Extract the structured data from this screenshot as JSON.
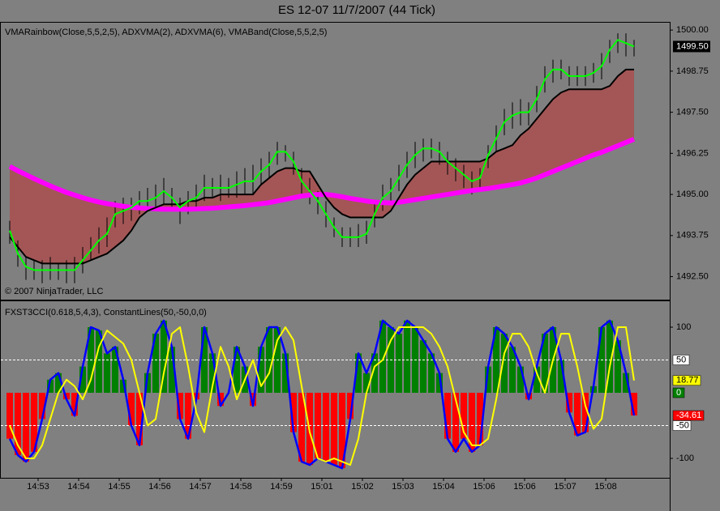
{
  "title": "ES 12-07  11/7/2007  (44 Tick)",
  "x_axis": {
    "ticks": [
      {
        "value": 3.5,
        "label": "14:53"
      },
      {
        "value": 8.5,
        "label": "14:54"
      },
      {
        "value": 13.5,
        "label": "14:55"
      },
      {
        "value": 18.5,
        "label": "14:56"
      },
      {
        "value": 23.5,
        "label": "14:57"
      },
      {
        "value": 28.5,
        "label": "14:58"
      },
      {
        "value": 33.5,
        "label": "14:59"
      },
      {
        "value": 38.5,
        "label": "15:01"
      },
      {
        "value": 43.5,
        "label": "15:02"
      },
      {
        "value": 48.5,
        "label": "15:03"
      },
      {
        "value": 53.5,
        "label": "15:04"
      },
      {
        "value": 58.5,
        "label": "15:06"
      },
      {
        "value": 63.5,
        "label": "15:06"
      },
      {
        "value": 68.5,
        "label": "15:07"
      },
      {
        "value": 73.5,
        "label": "15:08"
      }
    ]
  },
  "chart_data": [
    {
      "type": "price",
      "label": "VMARainbow(Close,5,5,2,5), ADXVMA(2), ADXVMA(6), VMABand(Close,5,5,2,5)",
      "copyright": "© 2007 NinjaTrader, LLC",
      "ylim": [
        1491.8,
        1500.2
      ],
      "yticks": [
        {
          "value": 1492.5,
          "label": "1492.50"
        },
        {
          "value": 1493.75,
          "label": "1493.75"
        },
        {
          "value": 1495,
          "label": "1495.00"
        },
        {
          "value": 1496.25,
          "label": "1496.25"
        },
        {
          "value": 1497.5,
          "label": "1497.50"
        },
        {
          "value": 1498.75,
          "label": "1498.75"
        },
        {
          "value": 1500,
          "label": "1500.00"
        }
      ],
      "last_price": {
        "value": 1499.5,
        "label": "1499.50"
      },
      "bar_color": "#000000",
      "band_color": "#b04848",
      "high": [
        1494.2,
        1493.6,
        1493.1,
        1493.0,
        1493.0,
        1493.1,
        1492.9,
        1493.0,
        1493.1,
        1493.4,
        1493.7,
        1494.0,
        1494.3,
        1494.8,
        1494.9,
        1494.9,
        1495.1,
        1495.2,
        1495.3,
        1495.5,
        1495.2,
        1494.9,
        1495.1,
        1495.3,
        1495.6,
        1495.5,
        1495.6,
        1495.5,
        1495.7,
        1495.8,
        1495.9,
        1496.1,
        1496.3,
        1496.6,
        1496.5,
        1496.3,
        1495.8,
        1495.5,
        1495.1,
        1494.8,
        1494.3,
        1494.0,
        1494.0,
        1494.1,
        1494.2,
        1494.8,
        1495.3,
        1495.5,
        1495.9,
        1496.3,
        1496.6,
        1496.7,
        1496.7,
        1496.6,
        1496.3,
        1496.1,
        1495.9,
        1495.7,
        1495.8,
        1496.5,
        1497.1,
        1497.6,
        1497.8,
        1497.9,
        1497.8,
        1498.3,
        1498.9,
        1499.1,
        1499.1,
        1498.9,
        1498.9,
        1498.9,
        1499.0,
        1499.3,
        1499.7,
        1499.9,
        1499.9,
        1499.7
      ],
      "low": [
        1493.5,
        1492.8,
        1492.4,
        1492.4,
        1492.3,
        1492.4,
        1492.4,
        1492.3,
        1492.3,
        1492.6,
        1493.0,
        1493.2,
        1493.4,
        1494.0,
        1494.1,
        1494.2,
        1494.4,
        1494.5,
        1494.5,
        1494.7,
        1494.5,
        1494.1,
        1494.4,
        1494.5,
        1494.8,
        1494.9,
        1494.8,
        1494.9,
        1494.9,
        1495.0,
        1495.0,
        1495.3,
        1495.5,
        1495.9,
        1496.0,
        1495.6,
        1495.0,
        1494.7,
        1494.4,
        1494.0,
        1493.7,
        1493.4,
        1493.4,
        1493.4,
        1493.5,
        1494.0,
        1494.5,
        1494.7,
        1495.1,
        1495.5,
        1495.8,
        1496.0,
        1496.1,
        1495.9,
        1495.6,
        1495.4,
        1495.2,
        1495.0,
        1495.1,
        1495.8,
        1496.3,
        1496.8,
        1497.0,
        1497.1,
        1497.1,
        1497.5,
        1498.1,
        1498.4,
        1498.5,
        1498.3,
        1498.3,
        1498.3,
        1498.4,
        1498.5,
        1499.0,
        1499.3,
        1499.2,
        1499.2
      ],
      "series": [
        {
          "color": "#00ff00",
          "width": 2,
          "values": [
            1493.9,
            1493.2,
            1492.8,
            1492.7,
            1492.7,
            1492.7,
            1492.7,
            1492.7,
            1492.7,
            1493.0,
            1493.3,
            1493.6,
            1493.8,
            1494.4,
            1494.5,
            1494.6,
            1494.8,
            1494.8,
            1494.9,
            1495.1,
            1494.9,
            1494.6,
            1494.8,
            1494.9,
            1495.2,
            1495.2,
            1495.2,
            1495.2,
            1495.3,
            1495.4,
            1495.4,
            1495.7,
            1495.9,
            1496.3,
            1496.3,
            1496.0,
            1495.4,
            1495.1,
            1494.8,
            1494.4,
            1494.0,
            1493.7,
            1493.7,
            1493.7,
            1493.8,
            1494.4,
            1494.9,
            1495.1,
            1495.5,
            1495.9,
            1496.2,
            1496.4,
            1496.4,
            1496.3,
            1496.0,
            1495.8,
            1495.6,
            1495.4,
            1495.5,
            1496.2,
            1496.7,
            1497.2,
            1497.4,
            1497.5,
            1497.5,
            1497.9,
            1498.5,
            1498.8,
            1498.8,
            1498.6,
            1498.6,
            1498.6,
            1498.7,
            1498.9,
            1499.4,
            1499.7,
            1499.6,
            1499.5
          ]
        },
        {
          "color": "#000000",
          "width": 2,
          "values": [
            1493.7,
            1493.4,
            1493.1,
            1493.0,
            1492.9,
            1492.9,
            1492.9,
            1492.9,
            1492.9,
            1492.9,
            1493.0,
            1493.1,
            1493.2,
            1493.4,
            1493.6,
            1493.9,
            1494.3,
            1494.5,
            1494.6,
            1494.7,
            1494.7,
            1494.7,
            1494.8,
            1494.8,
            1494.9,
            1494.9,
            1495.0,
            1495.0,
            1495.0,
            1495.0,
            1495.0,
            1495.3,
            1495.5,
            1495.7,
            1495.8,
            1495.8,
            1495.7,
            1495.7,
            1495.3,
            1494.9,
            1494.6,
            1494.4,
            1494.3,
            1494.3,
            1494.3,
            1494.3,
            1494.3,
            1494.5,
            1494.9,
            1495.3,
            1495.6,
            1495.8,
            1496.0,
            1496.0,
            1496.0,
            1496.0,
            1496.0,
            1496.0,
            1496.0,
            1496.1,
            1496.3,
            1496.4,
            1496.5,
            1496.8,
            1497.0,
            1497.3,
            1497.6,
            1497.9,
            1498.1,
            1498.2,
            1498.2,
            1498.2,
            1498.2,
            1498.2,
            1498.3,
            1498.6,
            1498.8,
            1498.8
          ]
        },
        {
          "color": "#ff00ff",
          "width": 6,
          "values": [
            1495.85,
            1495.72,
            1495.6,
            1495.48,
            1495.37,
            1495.26,
            1495.16,
            1495.06,
            1494.98,
            1494.9,
            1494.83,
            1494.77,
            1494.72,
            1494.68,
            1494.64,
            1494.61,
            1494.59,
            1494.57,
            1494.56,
            1494.55,
            1494.55,
            1494.55,
            1494.55,
            1494.56,
            1494.57,
            1494.58,
            1494.6,
            1494.62,
            1494.64,
            1494.66,
            1494.69,
            1494.72,
            1494.75,
            1494.8,
            1494.85,
            1494.9,
            1494.95,
            1494.98,
            1495.0,
            1495.0,
            1494.97,
            1494.93,
            1494.88,
            1494.84,
            1494.8,
            1494.77,
            1494.75,
            1494.74,
            1494.76,
            1494.8,
            1494.84,
            1494.88,
            1494.92,
            1494.96,
            1495.0,
            1495.04,
            1495.08,
            1495.12,
            1495.15,
            1495.18,
            1495.22,
            1495.26,
            1495.3,
            1495.35,
            1495.42,
            1495.5,
            1495.6,
            1495.7,
            1495.8,
            1495.9,
            1496.0,
            1496.1,
            1496.2,
            1496.28,
            1496.38,
            1496.48,
            1496.58,
            1496.68
          ]
        }
      ]
    },
    {
      "type": "oscillator",
      "label": "FXST3CCI(0.618,5,4,3), ConstantLines(50,-50,0,0)",
      "ylim": [
        -129.6,
        139.5
      ],
      "yticks": [
        100,
        -100
      ],
      "constant_lines": [
        50,
        -50,
        0
      ],
      "up_color": "#008000",
      "down_color": "#ff0000",
      "series": [
        {
          "color": "#0000ff",
          "width": 2.5,
          "values": [
            -70,
            -95,
            -105,
            -90,
            -40,
            20,
            30,
            -10,
            -35,
            40,
            100,
            95,
            60,
            70,
            20,
            -50,
            -80,
            30,
            90,
            110,
            70,
            -40,
            -70,
            -10,
            100,
            60,
            -20,
            0,
            70,
            40,
            -20,
            70,
            100,
            100,
            60,
            -60,
            -105,
            -110,
            -100,
            -105,
            -110,
            -115,
            -40,
            60,
            30,
            60,
            110,
            100,
            90,
            110,
            100,
            80,
            60,
            30,
            -70,
            -90,
            -70,
            -90,
            -80,
            40,
            100,
            90,
            70,
            40,
            -10,
            40,
            90,
            100,
            50,
            -30,
            -65,
            -60,
            10,
            100,
            110,
            80,
            30,
            -34.61
          ]
        },
        {
          "color": "#ffff00",
          "width": 2,
          "values": [
            -50,
            -80,
            -100,
            -100,
            -80,
            -40,
            0,
            20,
            10,
            -10,
            20,
            70,
            95,
            85,
            75,
            50,
            0,
            -50,
            -40,
            30,
            90,
            100,
            40,
            -30,
            -60,
            10,
            70,
            40,
            -10,
            20,
            50,
            10,
            30,
            80,
            100,
            80,
            10,
            -60,
            -100,
            -105,
            -100,
            -105,
            -110,
            -70,
            0,
            40,
            50,
            80,
            100,
            100,
            100,
            100,
            90,
            70,
            40,
            -10,
            -60,
            -80,
            -80,
            -70,
            -10,
            60,
            90,
            90,
            70,
            30,
            0,
            50,
            90,
            90,
            40,
            -20,
            -55,
            -40,
            40,
            100,
            100,
            18.77
          ]
        }
      ]
    }
  ]
}
